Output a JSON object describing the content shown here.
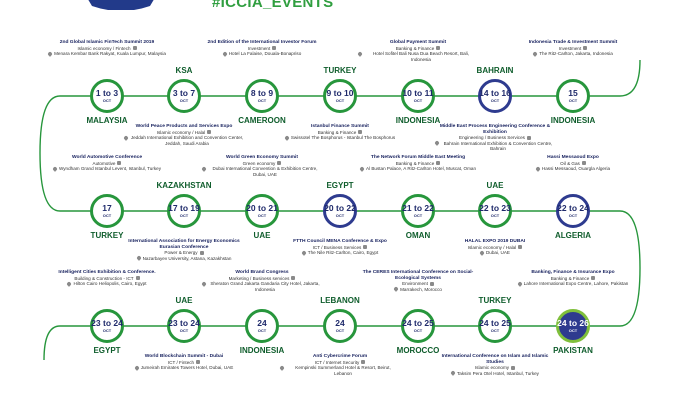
{
  "hashtag": "#ICCIA_EVENTS",
  "colors": {
    "green": "#27963c",
    "navy": "#2e3b8f",
    "lime": "#7fbf3b",
    "title": "#1a2460"
  },
  "icons": {
    "category": "people-icon",
    "venue": "location-pin-icon"
  },
  "rows": [
    [
      {
        "country": "INDONESIA",
        "day": "15",
        "month": "OCT",
        "style": "green",
        "event": {
          "title": "Indonesia Trade & Investment Summit",
          "category": "Investment",
          "venue": "The Ritz-Carlton, Jakarta, Indonesia"
        }
      },
      {
        "country": "BAHRAIN",
        "day": "14 to 16",
        "month": "OCT",
        "style": "blue",
        "event": {
          "title": "Middle East Process Engineering Conference & Exhibition",
          "category": "Engineering / Business Services",
          "venue": "Bahrain International Exhibition & Convention Centre, Bahrain"
        }
      },
      {
        "country": "INDONESIA",
        "day": "10 to 11",
        "month": "OCT",
        "style": "green",
        "event": {
          "title": "Global Payment Summit",
          "category": "Banking & Finance",
          "venue": "Hotel Sofitel Bali Nusa Dua Beach Resort, Bali, Indonesia"
        }
      },
      {
        "country": "TURKEY",
        "day": "9 to 10",
        "month": "OCT",
        "style": "green",
        "event": {
          "title": "Istanbul Finance Summit",
          "category": "Banking & Finance",
          "venue": "Swissotel The Bosphorus - Istanbul The Bosphorus"
        }
      },
      {
        "country": "CAMEROON",
        "day": "8 to 9",
        "month": "OCT",
        "style": "green",
        "event": {
          "title": "2nd Edition of the International Investor Forum",
          "category": "Investment",
          "venue": "Hotel La Falaise, Douala-Bonapriso"
        }
      },
      {
        "country": "KSA",
        "day": "3 to 7",
        "month": "OCT",
        "style": "green",
        "event": {
          "title": "World Peace Products and Services Expo",
          "category": "Islamic economy / Halal",
          "venue": "Jeddah International Exhibition and Convention Center, Jeddah, Saudi Arabia"
        }
      },
      {
        "country": "MALAYSIA",
        "day": "1 to 3",
        "month": "OCT",
        "style": "green",
        "event": {
          "title": "2nd Global Islamic FinTech Summit 2019",
          "category": "Islamic economy / Fintech",
          "venue": "Menara Kembar Bank Rakyat, Kuala Lumpur, Malaysia"
        }
      }
    ],
    [
      {
        "country": "TURKEY",
        "day": "17",
        "month": "OCT",
        "style": "green",
        "event": {
          "title": "World Automotive Conference",
          "category": "Automotive",
          "venue": "Wyndham Grand Istanbul Levent, Istanbul, Turkey"
        }
      },
      {
        "country": "KAZAKHSTAN",
        "day": "17 to 19",
        "month": "OCT",
        "style": "green",
        "event": {
          "title": "International Association for Energy Economics Eurasian Conference",
          "category": "Power & Energy",
          "venue": "Nazarbayev University, Astana, Kazakhstan"
        }
      },
      {
        "country": "UAE",
        "day": "20 to 21",
        "month": "OCT",
        "style": "green",
        "event": {
          "title": "World Green Economy Summit",
          "category": "Green economy",
          "venue": "Dubai International Convention & Exhibition Centre, Dubai, UAE"
        }
      },
      {
        "country": "EGYPT",
        "day": "20 to 22",
        "month": "OCT",
        "style": "blue",
        "event": {
          "title": "FTTH Council MENA Conference & Expo",
          "category": "ICT / Business Services",
          "venue": "The Nile Ritz-Carlton, Cairo, Egypt"
        }
      },
      {
        "country": "OMAN",
        "day": "21 to 22",
        "month": "OCT",
        "style": "green",
        "event": {
          "title": "The Network Forum Middle East Meeting",
          "category": "Banking & Finance",
          "venue": "Al Bustan Palace, A Ritz-Carlton Hotel, Muscat, Oman"
        }
      },
      {
        "country": "UAE",
        "day": "22 to 23",
        "month": "OCT",
        "style": "green",
        "event": {
          "title": "HALAL EXPO 2019 DUBAI",
          "category": "Islamic economy / Halal",
          "venue": "Dubai, UAE"
        }
      },
      {
        "country": "ALGERIA",
        "day": "22 to 24",
        "month": "OCT",
        "style": "blue",
        "event": {
          "title": "Hassi Messaoud Expo",
          "category": "Oil & Gas",
          "venue": "Hassi Messaoud, Ouargla Algeria"
        }
      }
    ],
    [
      {
        "country": "PAKISTAN",
        "day": "24 to 26",
        "month": "OCT",
        "style": "highlight",
        "event": {
          "title": "Banking, Finance & Insurance Expo",
          "category": "Banking & Finance",
          "venue": "Lahore International Expo Centre, Lahore, Pakistan"
        }
      },
      {
        "country": "TURKEY",
        "day": "24 to 25",
        "month": "OCT",
        "style": "green",
        "event": {
          "title": "International Conference on Islam and Islamic Studies",
          "category": "Islamic economy",
          "venue": "Taksim Pera Otel Hotel, Istanbul, Turkey"
        }
      },
      {
        "country": "MOROCCO",
        "day": "24 to 25",
        "month": "OCT",
        "style": "green",
        "event": {
          "title": "The CERES International Conference on Social-Ecological Systems",
          "category": "Environment",
          "venue": "Marrakech, Morocco"
        }
      },
      {
        "country": "LEBANON",
        "day": "24",
        "month": "OCT",
        "style": "green",
        "event": {
          "title": "Anti Cybercrime Forum",
          "category": "ICT / Internet Security",
          "venue": "Kempinski Summerland Hotel & Resort, Beirut, Lebanon"
        }
      },
      {
        "country": "INDONESIA",
        "day": "24",
        "month": "OCT",
        "style": "green",
        "event": {
          "title": "World Brand Congress",
          "category": "Marketing / Business services",
          "venue": "Sheraton Grand Jakarta Gandaria City Hotel, Jakarta, Indonesia"
        }
      },
      {
        "country": "UAE",
        "day": "23 to 24",
        "month": "OCT",
        "style": "green",
        "event": {
          "title": "World Blockchain Summit - Dubai",
          "category": "ICT / Fintech",
          "venue": "Jumeirah Emirates Towers Hotel, Dubai, UAE"
        }
      },
      {
        "country": "EGYPT",
        "day": "23 to 24",
        "month": "OCT",
        "style": "green",
        "event": {
          "title": "Intelligent Cities Exhibition & Conference.",
          "category": "Building & Construction - ICT",
          "venue": "Hilton Cairo Heliopolis, Cairo, Egypt"
        }
      }
    ]
  ]
}
